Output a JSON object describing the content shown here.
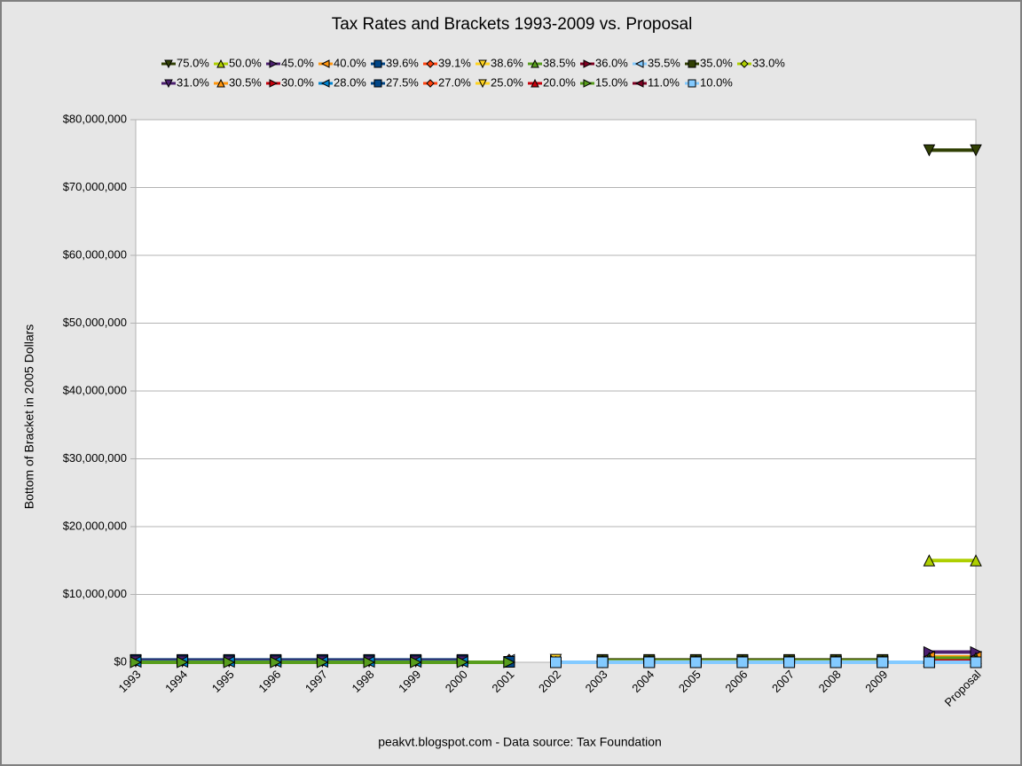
{
  "chart_data": {
    "type": "line",
    "title": "Tax Rates and Brackets 1993-2009 vs. Proposal",
    "y_label": "Bottom of Bracket in 2005 Dollars",
    "caption": "peakvt.blogspot.com - Data source: Tax Foundation",
    "categories": [
      "1993",
      "1994",
      "1995",
      "1996",
      "1997",
      "1998",
      "1999",
      "2000",
      "2001",
      "2002",
      "2003",
      "2004",
      "2005",
      "2006",
      "2007",
      "2008",
      "2009",
      null,
      "Proposal"
    ],
    "ylim": [
      0,
      80000000
    ],
    "yticks": [
      {
        "value": 0,
        "label": "$0"
      },
      {
        "value": 10000000,
        "label": "$10,000,000"
      },
      {
        "value": 20000000,
        "label": "$20,000,000"
      },
      {
        "value": 30000000,
        "label": "$30,000,000"
      },
      {
        "value": 40000000,
        "label": "$40,000,000"
      },
      {
        "value": 50000000,
        "label": "$50,000,000"
      },
      {
        "value": 60000000,
        "label": "$60,000,000"
      },
      {
        "value": 70000000,
        "label": "$70,000,000"
      },
      {
        "value": 80000000,
        "label": "$80,000,000"
      }
    ],
    "grid": true,
    "series": [
      {
        "name": "75.0%",
        "color": "#314004",
        "values": [
          null,
          null,
          null,
          null,
          null,
          null,
          null,
          null,
          null,
          null,
          null,
          null,
          null,
          null,
          null,
          null,
          null,
          75500000,
          75500000
        ]
      },
      {
        "name": "50.0%",
        "color": "#aecf00",
        "values": [
          null,
          null,
          null,
          null,
          null,
          null,
          null,
          null,
          null,
          null,
          null,
          null,
          null,
          null,
          null,
          null,
          null,
          15000000,
          15000000
        ]
      },
      {
        "name": "45.0%",
        "color": "#4b1f6f",
        "values": [
          null,
          null,
          null,
          null,
          null,
          null,
          null,
          null,
          null,
          null,
          null,
          null,
          null,
          null,
          null,
          null,
          null,
          1500000,
          1500000
        ]
      },
      {
        "name": "40.0%",
        "color": "#ff950e",
        "values": [
          null,
          null,
          null,
          null,
          null,
          null,
          null,
          null,
          null,
          null,
          null,
          null,
          null,
          null,
          null,
          null,
          null,
          800000,
          800000
        ]
      },
      {
        "name": "39.6%",
        "color": "#004586",
        "values": [
          350000,
          350000,
          350000,
          350000,
          350000,
          350000,
          350000,
          350000,
          null,
          null,
          null,
          null,
          null,
          null,
          null,
          null,
          null,
          null,
          null
        ]
      },
      {
        "name": "39.1%",
        "color": "#ff420e",
        "values": [
          null,
          null,
          null,
          null,
          null,
          null,
          null,
          null,
          380000,
          null,
          null,
          null,
          null,
          null,
          null,
          null,
          null,
          null,
          null
        ]
      },
      {
        "name": "38.6%",
        "color": "#ffd320",
        "values": [
          null,
          null,
          null,
          null,
          null,
          null,
          null,
          null,
          null,
          370000,
          null,
          null,
          null,
          null,
          null,
          null,
          null,
          null,
          null
        ]
      },
      {
        "name": "38.5%",
        "color": "#579d1c",
        "values": [
          null,
          null,
          null,
          null,
          null,
          null,
          null,
          null,
          null,
          null,
          null,
          null,
          null,
          null,
          null,
          null,
          null,
          600000,
          600000
        ]
      },
      {
        "name": "36.0%",
        "color": "#7e0021",
        "values": [
          200000,
          200000,
          200000,
          200000,
          200000,
          200000,
          200000,
          200000,
          null,
          null,
          null,
          null,
          null,
          null,
          null,
          null,
          null,
          null,
          null
        ]
      },
      {
        "name": "35.5%",
        "color": "#83caff",
        "values": [
          null,
          null,
          null,
          null,
          null,
          null,
          null,
          null,
          350000,
          null,
          null,
          null,
          null,
          null,
          null,
          null,
          null,
          null,
          null
        ]
      },
      {
        "name": "35.0%",
        "color": "#314004",
        "values": [
          null,
          null,
          null,
          null,
          null,
          null,
          null,
          null,
          null,
          null,
          340000,
          340000,
          340000,
          340000,
          340000,
          340000,
          340000,
          null,
          null
        ]
      },
      {
        "name": "33.0%",
        "color": "#aecf00",
        "values": [
          null,
          null,
          null,
          null,
          null,
          null,
          null,
          null,
          null,
          null,
          160000,
          160000,
          160000,
          160000,
          160000,
          160000,
          160000,
          null,
          null
        ]
      },
      {
        "name": "31.0%",
        "color": "#4b1f6f",
        "values": [
          140000,
          140000,
          140000,
          140000,
          140000,
          140000,
          140000,
          140000,
          null,
          null,
          null,
          null,
          null,
          null,
          null,
          null,
          null,
          null,
          null
        ]
      },
      {
        "name": "30.5%",
        "color": "#ff950e",
        "values": [
          null,
          null,
          null,
          null,
          null,
          null,
          null,
          null,
          150000,
          null,
          null,
          null,
          null,
          null,
          null,
          null,
          null,
          null,
          null
        ]
      },
      {
        "name": "30.0%",
        "color": "#c5000b",
        "values": [
          null,
          null,
          null,
          null,
          null,
          null,
          null,
          null,
          null,
          150000,
          null,
          null,
          null,
          null,
          null,
          null,
          null,
          null,
          null
        ]
      },
      {
        "name": "28.0%",
        "color": "#0084d1",
        "values": [
          70000,
          70000,
          70000,
          70000,
          70000,
          70000,
          70000,
          70000,
          null,
          null,
          75000,
          75000,
          75000,
          75000,
          75000,
          75000,
          75000,
          null,
          null
        ]
      },
      {
        "name": "27.5%",
        "color": "#004586",
        "values": [
          null,
          null,
          null,
          null,
          null,
          null,
          null,
          null,
          60000,
          null,
          null,
          null,
          null,
          null,
          null,
          null,
          null,
          null,
          null
        ]
      },
      {
        "name": "27.0%",
        "color": "#ff420e",
        "values": [
          null,
          null,
          null,
          null,
          null,
          null,
          null,
          null,
          null,
          50000,
          null,
          null,
          null,
          null,
          null,
          null,
          null,
          null,
          null
        ]
      },
      {
        "name": "25.0%",
        "color": "#ffd320",
        "values": [
          null,
          null,
          null,
          null,
          null,
          null,
          null,
          null,
          null,
          null,
          30000,
          30000,
          30000,
          30000,
          30000,
          30000,
          30000,
          null,
          null
        ]
      },
      {
        "name": "20.0%",
        "color": "#c5000b",
        "values": [
          null,
          null,
          null,
          null,
          null,
          null,
          null,
          null,
          null,
          null,
          null,
          null,
          null,
          null,
          null,
          null,
          null,
          200000,
          200000
        ]
      },
      {
        "name": "15.0%",
        "color": "#579d1c",
        "values": [
          0,
          0,
          0,
          0,
          0,
          0,
          0,
          0,
          0,
          null,
          14000,
          14000,
          14000,
          14000,
          14000,
          14000,
          14000,
          null,
          null
        ]
      },
      {
        "name": "11.0%",
        "color": "#7e0021",
        "values": [
          null,
          null,
          null,
          null,
          null,
          null,
          null,
          null,
          null,
          null,
          null,
          null,
          null,
          null,
          null,
          null,
          null,
          0,
          0
        ]
      },
      {
        "name": "10.0%",
        "color": "#83caff",
        "values": [
          null,
          null,
          null,
          null,
          null,
          null,
          null,
          null,
          null,
          0,
          0,
          0,
          0,
          0,
          0,
          0,
          0,
          0,
          0
        ]
      }
    ]
  }
}
